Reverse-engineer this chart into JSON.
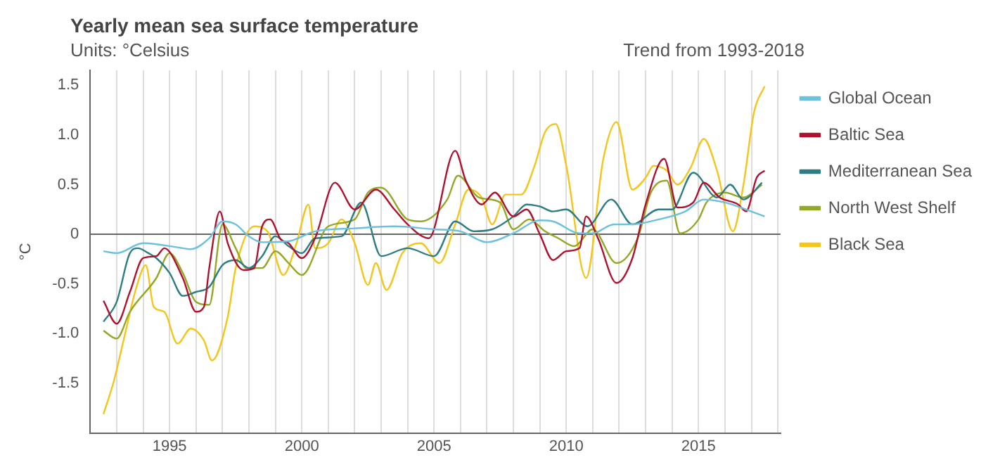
{
  "chart_data": {
    "type": "line",
    "title": "Yearly mean sea surface temperature",
    "subtitle": "Units: °Celsius",
    "ylabel": "°C",
    "annotations": [
      "Trend from 1993-2018"
    ],
    "xlim": [
      1992,
      2018.1
    ],
    "ylim": [
      -2,
      1.65
    ],
    "xticks": [
      {
        "value": 1993,
        "label": null
      },
      {
        "value": 1994,
        "label": null
      },
      {
        "value": 1995,
        "label": "1995"
      },
      {
        "value": 1996,
        "label": null
      },
      {
        "value": 1997,
        "label": null
      },
      {
        "value": 1998,
        "label": null
      },
      {
        "value": 1999,
        "label": null
      },
      {
        "value": 2000,
        "label": "2000"
      },
      {
        "value": 2001,
        "label": null
      },
      {
        "value": 2002,
        "label": null
      },
      {
        "value": 2003,
        "label": null
      },
      {
        "value": 2004,
        "label": null
      },
      {
        "value": 2005,
        "label": "2005"
      },
      {
        "value": 2006,
        "label": null
      },
      {
        "value": 2007,
        "label": null
      },
      {
        "value": 2008,
        "label": null
      },
      {
        "value": 2009,
        "label": null
      },
      {
        "value": 2010,
        "label": "2010"
      },
      {
        "value": 2011,
        "label": null
      },
      {
        "value": 2012,
        "label": null
      },
      {
        "value": 2013,
        "label": null
      },
      {
        "value": 2014,
        "label": null
      },
      {
        "value": 2015,
        "label": "2015"
      },
      {
        "value": 2016,
        "label": null
      },
      {
        "value": 2017,
        "label": null
      },
      {
        "value": 2018,
        "label": null
      }
    ],
    "yticks": [
      {
        "value": -1.5,
        "label": "-1.5"
      },
      {
        "value": -1,
        "label": "-1.0"
      },
      {
        "value": -0.5,
        "label": "-0.5"
      },
      {
        "value": 0,
        "label": "0"
      },
      {
        "value": 0.5,
        "label": "0.5"
      },
      {
        "value": 1,
        "label": "1.0"
      },
      {
        "value": 1.5,
        "label": "1.5"
      }
    ],
    "grid": "x",
    "legend": "right",
    "marker": "none",
    "line_style": "solid",
    "ref_lines": [
      {
        "axis": "y",
        "value": 0,
        "label": null,
        "color": "#666666"
      }
    ],
    "series": [
      {
        "name": "Global Ocean",
        "color": "#6cc1dc",
        "x": [
          1992.5,
          1993,
          1994,
          1994.5,
          1995.5,
          1995.8,
          1996.5,
          1997,
          1997.5,
          1998,
          1998.5,
          1999.5,
          2000.5,
          2002,
          2003.5,
          2005,
          2006,
          2007,
          2008,
          2009,
          2009.5,
          2010.5,
          2011,
          2011.8,
          2012.5,
          2013.5,
          2014.5,
          2015.2,
          2016,
          2016.8,
          2017.5
        ],
        "values": [
          -0.17,
          -0.19,
          -0.09,
          -0.1,
          -0.14,
          -0.15,
          -0.04,
          0.13,
          0.1,
          -0.02,
          -0.08,
          -0.07,
          0.03,
          0.06,
          0.08,
          0.05,
          0.03,
          -0.08,
          0.01,
          0.14,
          0.13,
          0.01,
          0.01,
          0.1,
          0.1,
          0.15,
          0.23,
          0.35,
          0.32,
          0.25,
          0.18
        ]
      },
      {
        "name": "Baltic Sea",
        "color": "#b0112f",
        "x": [
          1992.5,
          1993,
          1993.5,
          1994,
          1994.5,
          1994.8,
          1995.5,
          1996,
          1996.3,
          1996.5,
          1996.9,
          1997.2,
          1997.8,
          1998.2,
          1998.5,
          1998.8,
          1999.2,
          1999.5,
          2000,
          2000.5,
          2001.25,
          2002,
          2002.8,
          2003.5,
          2004,
          2004.8,
          2005.8,
          2006.2,
          2006.8,
          2007.3,
          2008,
          2008.5,
          2009,
          2009.5,
          2010,
          2010.5,
          2010.75,
          2011.2,
          2011.9,
          2012.5,
          2013,
          2013.7,
          2014.2,
          2014.8,
          2015.2,
          2015.8,
          2016.5,
          2016.8,
          2017.2,
          2017.5
        ],
        "values": [
          -0.67,
          -0.9,
          -0.58,
          -0.24,
          -0.22,
          -0.14,
          -0.44,
          -0.78,
          -0.73,
          -0.34,
          0.23,
          -0.09,
          -0.36,
          -0.34,
          0.08,
          0.15,
          -0.05,
          -0.09,
          -0.24,
          -0.04,
          0.52,
          0.25,
          0.45,
          0.25,
          0.1,
          -0.04,
          0.84,
          0.54,
          0.3,
          0.42,
          0.18,
          0.25,
          0.0,
          -0.26,
          -0.17,
          -0.14,
          0.18,
          -0.04,
          -0.49,
          -0.24,
          0.3,
          0.76,
          0.27,
          0.32,
          0.52,
          0.37,
          0.3,
          0.23,
          0.57,
          0.64
        ]
      },
      {
        "name": "Mediterranean Sea",
        "color": "#2e7d83",
        "x": [
          1992.5,
          1993,
          1993.5,
          1993.8,
          1994.2,
          1994.5,
          1995,
          1995.5,
          1996,
          1996.5,
          1997,
          1997.5,
          1998,
          1998.5,
          1999,
          1999.5,
          2000,
          2000.5,
          2001.5,
          2002.25,
          2003,
          2004,
          2005,
          2005.8,
          2006.5,
          2007.2,
          2008,
          2008.5,
          2009,
          2009.5,
          2010,
          2010.8,
          2011.7,
          2012.5,
          2013.5,
          2014,
          2014.8,
          2015.7,
          2016.2,
          2016.7,
          2017.4
        ],
        "values": [
          -0.88,
          -0.68,
          -0.19,
          -0.14,
          -0.19,
          -0.24,
          -0.39,
          -0.62,
          -0.58,
          -0.53,
          -0.31,
          -0.26,
          -0.34,
          -0.22,
          -0.02,
          -0.12,
          -0.19,
          -0.04,
          -0.02,
          0.32,
          -0.22,
          -0.14,
          -0.22,
          0.13,
          0.03,
          0.05,
          0.18,
          0.3,
          0.28,
          0.23,
          0.25,
          0.08,
          0.35,
          0.1,
          0.25,
          0.25,
          0.62,
          0.37,
          0.5,
          0.35,
          0.52
        ]
      },
      {
        "name": "North West Shelf",
        "color": "#93a824",
        "x": [
          1992.5,
          1993,
          1993.5,
          1994.5,
          1995,
          1995.5,
          1996,
          1996.5,
          1997,
          1997.5,
          1997.9,
          1998.5,
          1999,
          1999.5,
          2000,
          2001,
          2002,
          2002.5,
          2003,
          2004,
          2004.5,
          2005.5,
          2005.9,
          2006.7,
          2007.5,
          2008,
          2008.6,
          2009.2,
          2009.7,
          2010.3,
          2011,
          2011.9,
          2012.7,
          2013.2,
          2013.8,
          2014.3,
          2015,
          2015.3,
          2016,
          2016.7,
          2017.4
        ],
        "values": [
          -0.97,
          -1.05,
          -0.78,
          -0.44,
          -0.19,
          -0.39,
          -0.68,
          -0.71,
          0.1,
          -0.14,
          -0.34,
          -0.34,
          -0.17,
          -0.29,
          -0.41,
          0.08,
          0.15,
          0.42,
          0.47,
          0.15,
          0.13,
          0.35,
          0.59,
          0.37,
          0.32,
          0.05,
          0.15,
          0.03,
          -0.04,
          -0.12,
          0.05,
          -0.29,
          -0.04,
          0.42,
          0.54,
          0.01,
          0.15,
          0.32,
          0.42,
          0.37,
          0.5
        ]
      },
      {
        "name": "Black Sea",
        "color": "#f5c518",
        "x": [
          1992.5,
          1992.9,
          1993.3,
          1993.75,
          1994.1,
          1994.4,
          1994.8,
          1995.3,
          1995.8,
          1996.3,
          1996.6,
          1997.2,
          1997.5,
          1998.2,
          1998.7,
          1999.3,
          1999.8,
          2000.25,
          2000.5,
          2001,
          2001.5,
          2002,
          2002.5,
          2002.8,
          2003.2,
          2003.8,
          2004.5,
          2005.2,
          2005.8,
          2006.3,
          2006.8,
          2007.2,
          2007.7,
          2008.3,
          2008.8,
          2009.2,
          2009.6,
          2010,
          2010.75,
          2011.4,
          2011.9,
          2012.5,
          2013,
          2013.3,
          2013.8,
          2014.2,
          2014.7,
          2015.2,
          2015.7,
          2016.3,
          2016.7,
          2017.1,
          2017.5
        ],
        "values": [
          -1.81,
          -1.47,
          -1.02,
          -0.53,
          -0.31,
          -0.73,
          -0.78,
          -1.1,
          -0.95,
          -1.07,
          -1.27,
          -0.83,
          -0.34,
          0.08,
          0.03,
          -0.41,
          -0.09,
          0.3,
          -0.14,
          -0.09,
          0.15,
          -0.09,
          -0.51,
          -0.29,
          -0.56,
          -0.19,
          -0.09,
          -0.29,
          0.1,
          0.45,
          0.37,
          0.1,
          0.4,
          0.4,
          0.69,
          1.03,
          1.11,
          0.69,
          -0.44,
          0.76,
          1.13,
          0.45,
          0.57,
          0.69,
          0.64,
          0.5,
          0.67,
          0.96,
          0.64,
          0.03,
          0.5,
          1.23,
          1.49
        ]
      }
    ]
  }
}
